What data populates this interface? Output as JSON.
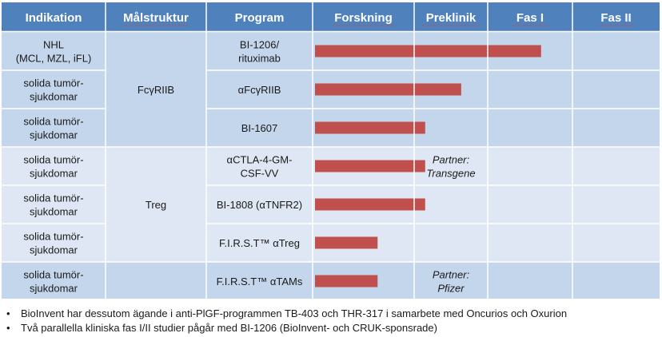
{
  "colors": {
    "header": "#4f81bd",
    "row_a": "#c4d6ec",
    "row_b": "#dee7f3",
    "bar": "#c0504d"
  },
  "columns": [
    "Indikation",
    "Målstruktur",
    "Program",
    "Forskning",
    "Preklinik",
    "Fas I",
    "Fas II"
  ],
  "stages": [
    "Forskning",
    "Preklinik",
    "Fas I",
    "Fas II"
  ],
  "groups": [
    {
      "target": "FcγRIIB",
      "rows": [
        0,
        1,
        2
      ]
    },
    {
      "target": "Treg",
      "rows": [
        3,
        4,
        5
      ]
    },
    {
      "target": "",
      "rows": [
        6
      ]
    }
  ],
  "rows": [
    {
      "indication": [
        "NHL",
        "(MCL, MZL, iFL)"
      ],
      "program": [
        "BI-1206/",
        "rituximab"
      ],
      "progress": 2.63,
      "partner": []
    },
    {
      "indication": [
        "solida tumör-",
        "sjukdomar"
      ],
      "program": [
        "αFcγRIIB"
      ],
      "progress": 1.64,
      "partner": []
    },
    {
      "indication": [
        "solida tumör-",
        "sjukdomar"
      ],
      "program": [
        "BI-1607"
      ],
      "progress": 1.15,
      "partner": []
    },
    {
      "indication": [
        "solida tumör-",
        "sjukdomar"
      ],
      "program": [
        "αCTLA-4-GM-",
        "CSF-VV"
      ],
      "progress": 1.15,
      "partner": [
        "Partner:",
        "Transgene"
      ]
    },
    {
      "indication": [
        "solida tumör-",
        "sjukdomar"
      ],
      "program": [
        "BI-1808 (αTNFR2)"
      ],
      "progress": 1.15,
      "partner": []
    },
    {
      "indication": [
        "solida tumör-",
        "sjukdomar"
      ],
      "program": [
        "F.I.R.S.T™ αTreg"
      ],
      "progress": 0.64,
      "partner": []
    },
    {
      "indication": [
        "solida tumör-",
        "sjukdomar"
      ],
      "program": [
        "F.I.R.S.T™ αTAMs"
      ],
      "progress": 0.64,
      "partner": [
        "Partner:",
        "Pfizer"
      ]
    }
  ],
  "notes": [
    "BioInvent har dessutom ägande i anti-PlGF-programmen TB-403 och THR-317 i samarbete med Oncurios och Oxurion",
    "Två parallella kliniska fas I/II studier pågår med BI-1206 (BioInvent- och CRUK-sponsrade)"
  ],
  "bullet": "•"
}
